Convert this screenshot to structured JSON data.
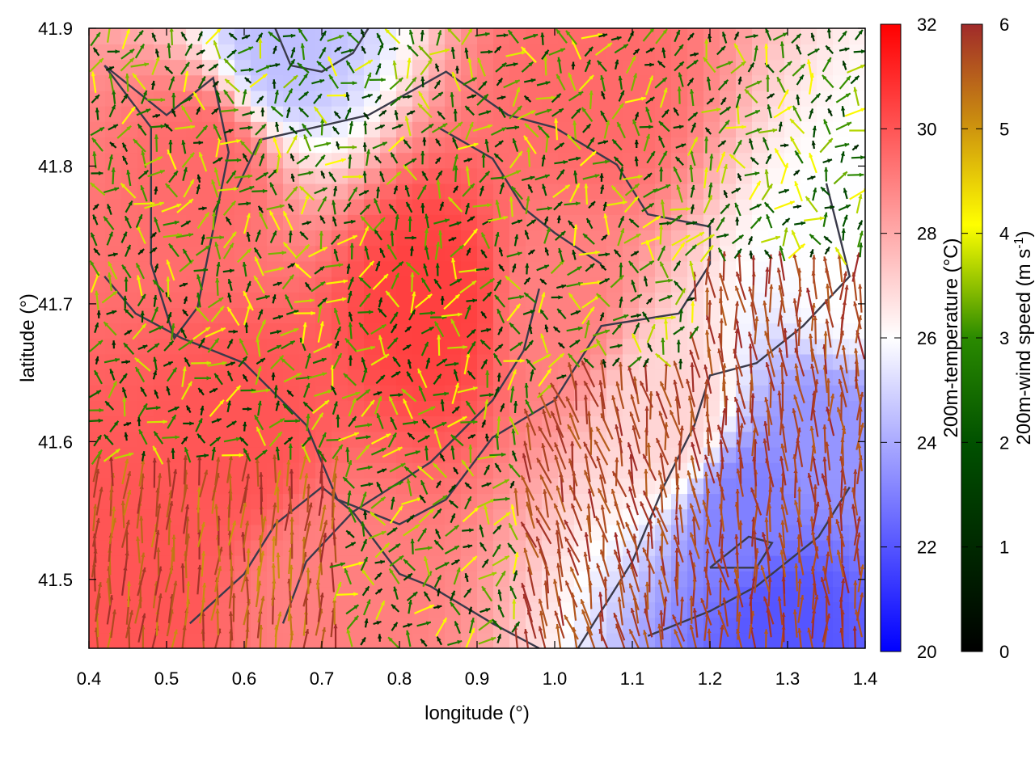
{
  "chart_data": {
    "type": "heatmap",
    "title": "",
    "xlabel": "longitude (°)",
    "ylabel": "latitude (°)",
    "xlim": [
      0.4,
      1.4
    ],
    "ylim": [
      41.45,
      41.9
    ],
    "xticks": [
      0.4,
      0.5,
      0.6,
      0.7,
      0.8,
      0.9,
      1.0,
      1.1,
      1.2,
      1.3,
      1.4
    ],
    "xtick_labels": [
      "0.4",
      "0.5",
      "0.6",
      "0.7",
      "0.8",
      "0.9",
      "1.0",
      "1.1",
      "1.2",
      "1.3",
      "1.4"
    ],
    "yticks": [
      41.5,
      41.6,
      41.7,
      41.8,
      41.9
    ],
    "ytick_labels": [
      "41.5",
      "41.6",
      "41.7",
      "41.8",
      "41.9"
    ],
    "field": {
      "name": "200m-temperature",
      "unit": "°C",
      "description_points": [
        {
          "lon": 0.85,
          "lat": 41.7,
          "value": 30.5
        },
        {
          "lon": 0.6,
          "lat": 41.6,
          "value": 30.0
        },
        {
          "lon": 0.55,
          "lat": 41.8,
          "value": 29.5
        },
        {
          "lon": 1.05,
          "lat": 41.85,
          "value": 29.5
        },
        {
          "lon": 0.7,
          "lat": 41.5,
          "value": 29.0
        },
        {
          "lon": 0.45,
          "lat": 41.5,
          "value": 30.0
        },
        {
          "lon": 1.0,
          "lat": 41.7,
          "value": 29.0
        },
        {
          "lon": 1.15,
          "lat": 41.62,
          "value": 27.0
        },
        {
          "lon": 1.25,
          "lat": 41.55,
          "value": 23.0
        },
        {
          "lon": 1.3,
          "lat": 41.47,
          "value": 22.0
        },
        {
          "lon": 1.35,
          "lat": 41.6,
          "value": 23.5
        },
        {
          "lon": 1.38,
          "lat": 41.72,
          "value": 26.0
        },
        {
          "lon": 0.65,
          "lat": 41.89,
          "value": 24.5
        }
      ]
    },
    "vectors": {
      "name": "200m-wind speed",
      "unit": "m s-1",
      "regions": [
        {
          "region": "north/center",
          "speed_range": [
            1,
            4
          ]
        },
        {
          "region": "southeast",
          "speed_range": [
            5.5,
            6
          ]
        },
        {
          "region": "southwest",
          "speed_range": [
            5.5,
            6
          ]
        }
      ]
    },
    "colorbars": [
      {
        "label": "200m-temperature (°C)",
        "range": [
          20,
          32
        ],
        "ticks": [
          "20",
          "22",
          "24",
          "26",
          "28",
          "30",
          "32"
        ],
        "colors": [
          "#0000ff",
          "#ffffff",
          "#ff0000"
        ]
      },
      {
        "label": "200m-wind speed (m s-1)",
        "label_parts": [
          "200m-wind speed (m s",
          "-1",
          ")"
        ],
        "range": [
          0,
          6
        ],
        "ticks": [
          "0",
          "1",
          "2",
          "3",
          "4",
          "5",
          "6"
        ],
        "colors": [
          "#000000",
          "#005000",
          "#2a8a00",
          "#8cbf00",
          "#ffff00",
          "#c98a10",
          "#a02a2a"
        ]
      }
    ],
    "grid": false,
    "legend": "none"
  }
}
